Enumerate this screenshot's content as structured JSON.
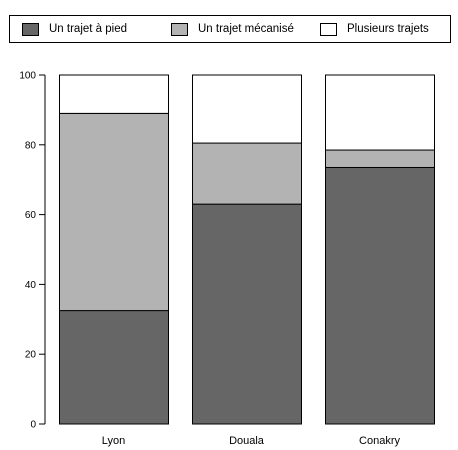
{
  "chart_data": {
    "type": "bar",
    "stacked": true,
    "categories": [
      "Lyon",
      "Douala",
      "Conakry"
    ],
    "series": [
      {
        "name": "Un trajet à pied",
        "color": "#666666",
        "values": [
          32.5,
          63,
          73.5
        ]
      },
      {
        "name": "Un trajet mécanisé",
        "color": "#b3b3b3",
        "values": [
          56.5,
          17.5,
          5
        ]
      },
      {
        "name": "Plusieurs trajets",
        "color": "#ffffff",
        "values": [
          11,
          19.5,
          21.5
        ]
      }
    ],
    "ylim": [
      0,
      100
    ],
    "yticks": [
      0,
      20,
      40,
      60,
      80,
      100
    ],
    "legend_position": "top",
    "grid": false
  }
}
